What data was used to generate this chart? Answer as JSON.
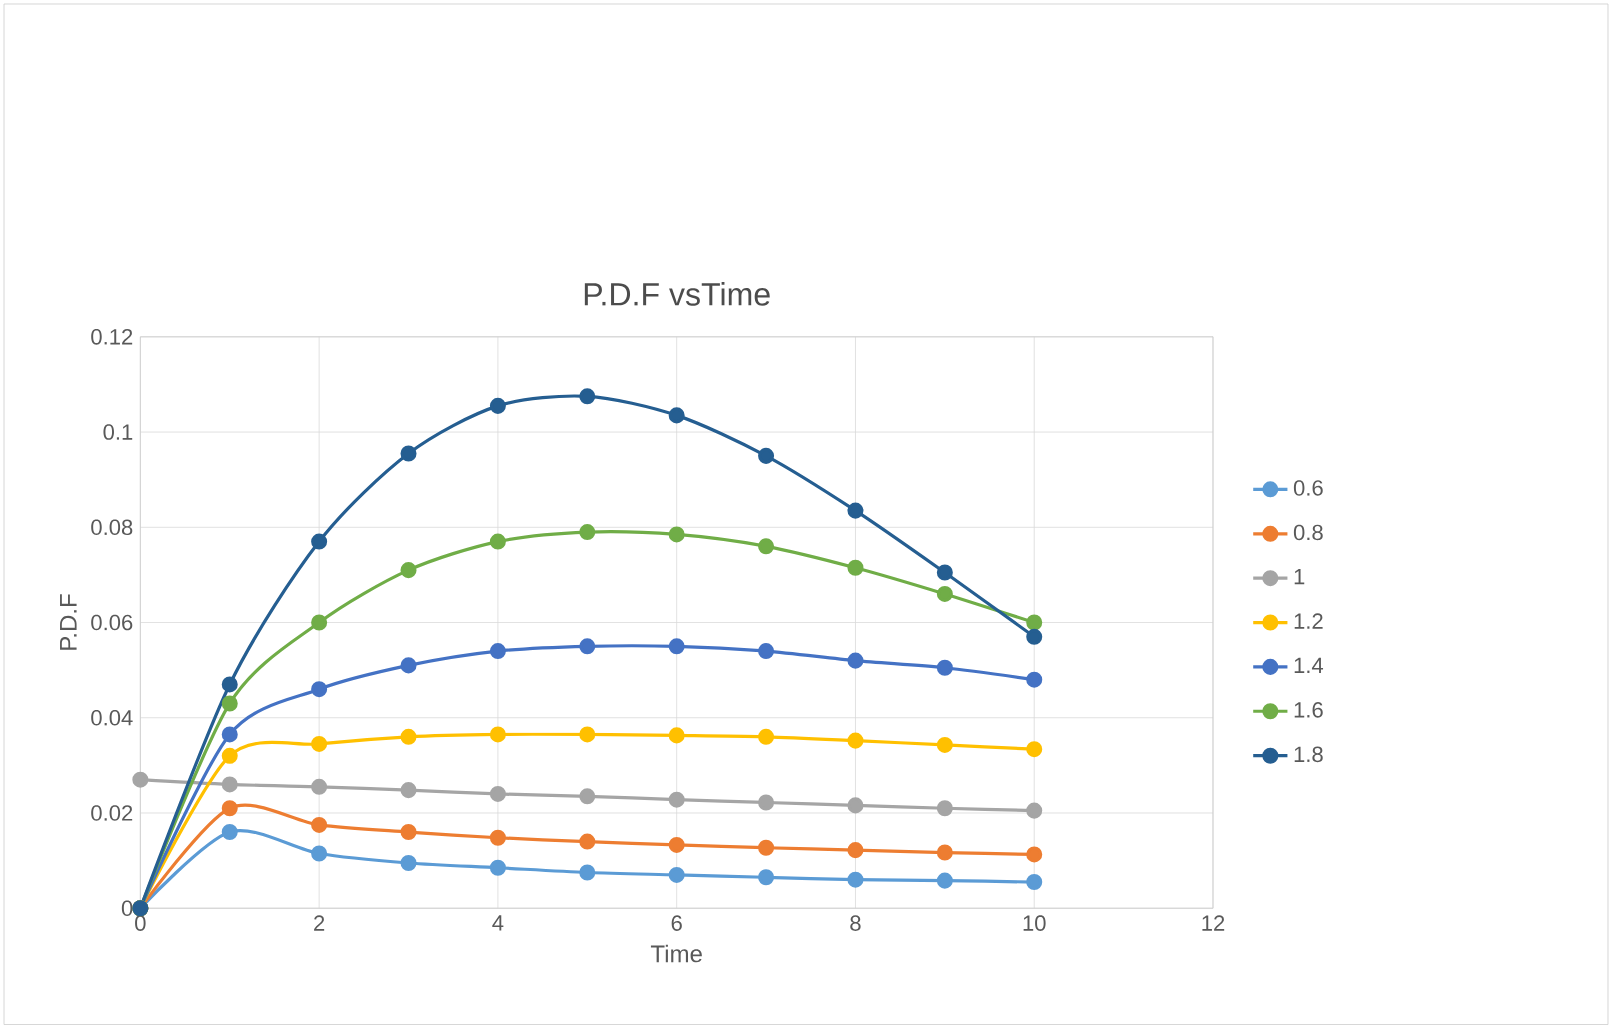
{
  "chart_data": {
    "type": "line",
    "title": "P.D.F vsTime",
    "xlabel": "Time",
    "ylabel": "P.D.F",
    "x": [
      0,
      1,
      2,
      3,
      4,
      5,
      6,
      7,
      8,
      9,
      10
    ],
    "xlim": [
      0,
      12
    ],
    "xticks": [
      0,
      2,
      4,
      6,
      8,
      10,
      12
    ],
    "ylim": [
      0,
      0.12
    ],
    "yticks": [
      0,
      0.02,
      0.04,
      0.06,
      0.08,
      0.1,
      0.12
    ],
    "grid": true,
    "legend": "right",
    "marker": "circle",
    "series": [
      {
        "name": "0.6",
        "color": "#5b9bd5",
        "values": [
          0,
          0.016,
          0.0115,
          0.0095,
          0.0085,
          0.0075,
          0.007,
          0.0065,
          0.006,
          0.0058,
          0.0055
        ]
      },
      {
        "name": "0.8",
        "color": "#ed7d31",
        "values": [
          0,
          0.021,
          0.0175,
          0.016,
          0.0148,
          0.014,
          0.0133,
          0.0127,
          0.0122,
          0.0117,
          0.0113
        ]
      },
      {
        "name": "1",
        "color": "#a5a5a5",
        "values": [
          0.027,
          0.026,
          0.0255,
          0.0248,
          0.024,
          0.0235,
          0.0228,
          0.0222,
          0.0216,
          0.021,
          0.0205
        ]
      },
      {
        "name": "1.2",
        "color": "#ffc000",
        "values": [
          0,
          0.032,
          0.0345,
          0.036,
          0.0365,
          0.0365,
          0.0363,
          0.036,
          0.0352,
          0.0343,
          0.0334
        ]
      },
      {
        "name": "1.4",
        "color": "#4472c4",
        "values": [
          0,
          0.0365,
          0.046,
          0.051,
          0.054,
          0.055,
          0.055,
          0.054,
          0.052,
          0.0505,
          0.048
        ]
      },
      {
        "name": "1.6",
        "color": "#70ad47",
        "values": [
          0,
          0.043,
          0.06,
          0.071,
          0.077,
          0.079,
          0.0785,
          0.076,
          0.0715,
          0.066,
          0.06
        ]
      },
      {
        "name": "1.8",
        "color": "#255e91",
        "values": [
          0,
          0.047,
          0.077,
          0.0955,
          0.1055,
          0.1075,
          0.1035,
          0.095,
          0.0835,
          0.0705,
          0.057
        ]
      }
    ]
  }
}
